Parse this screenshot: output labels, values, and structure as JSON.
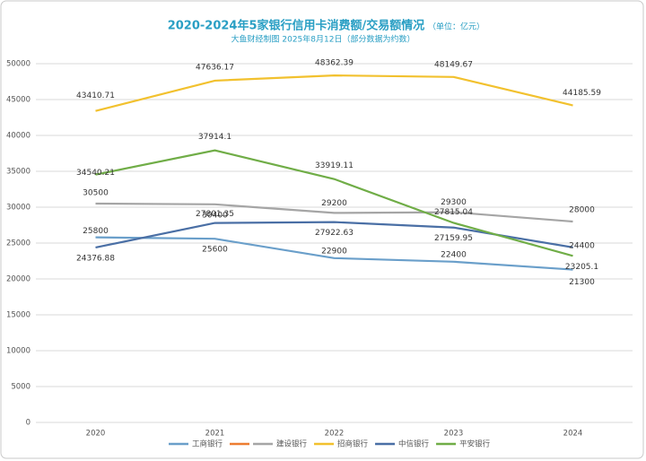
{
  "chart_data": {
    "type": "line",
    "title": "2020-2024年5家银行信用卡消费额/交易额情况",
    "unit": "（单位：亿元）",
    "subtitle": "大鱼财经制图 2025年8月12日（部分数据为约数）",
    "categories": [
      "2020",
      "2021",
      "2022",
      "2023",
      "2024"
    ],
    "ylim": [
      0,
      50000
    ],
    "yticks": [
      0,
      5000,
      10000,
      15000,
      20000,
      25000,
      30000,
      35000,
      40000,
      45000,
      50000
    ],
    "grid": true,
    "legend": "bottom",
    "series": [
      {
        "name": "工商银行",
        "color": "#6a9fca",
        "values": [
          25800,
          25600,
          22900,
          22400,
          21300
        ]
      },
      {
        "color": "#ed7d31",
        "values": [
          null,
          null,
          null,
          null,
          null
        ]
      },
      {
        "name": "建设银行",
        "color": "#a5a5a5",
        "values": [
          30500,
          30400,
          29200,
          29300,
          28000
        ]
      },
      {
        "name": "招商银行",
        "color": "#f2c12e",
        "values": [
          43410.71,
          47636.17,
          48362.39,
          48149.67,
          44185.59
        ]
      },
      {
        "name": "中信银行",
        "color": "#4a6fa5",
        "values": [
          24376.88,
          27801.35,
          27922.63,
          27159.95,
          24400
        ]
      },
      {
        "name": "平安银行",
        "color": "#70ad47",
        "values": [
          34540.21,
          37914.1,
          33919.11,
          27815.04,
          23205.1
        ]
      }
    ]
  }
}
